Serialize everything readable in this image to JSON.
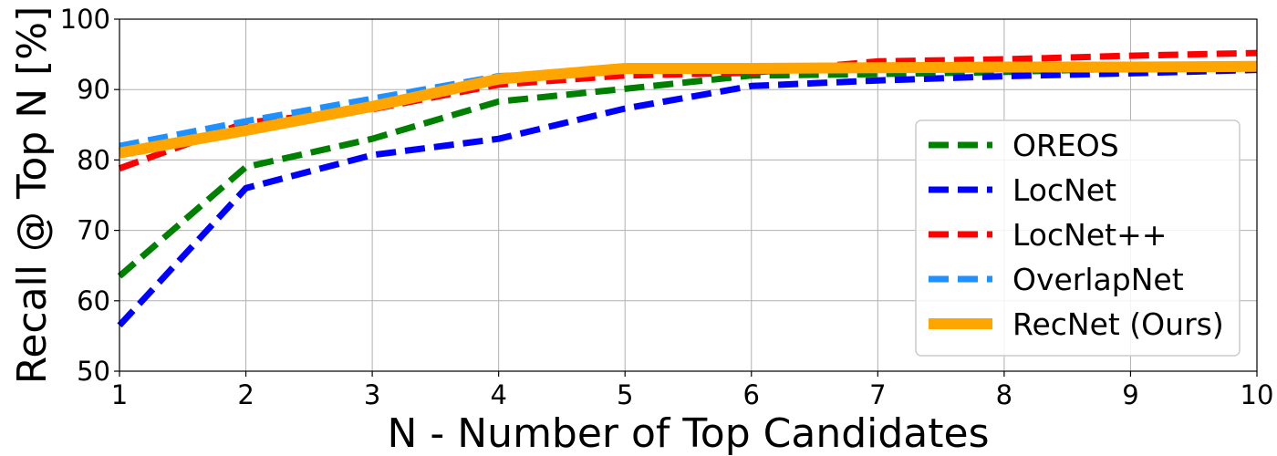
{
  "chart_data": {
    "type": "line",
    "title": "",
    "xlabel": "N - Number of Top Candidates",
    "ylabel": "Recall @ Top N [%]",
    "xlim": [
      1,
      10
    ],
    "ylim": [
      50,
      100
    ],
    "xticks": [
      "1",
      "2",
      "3",
      "4",
      "5",
      "6",
      "7",
      "8",
      "9",
      "10"
    ],
    "yticks": [
      "50",
      "60",
      "70",
      "80",
      "90",
      "100"
    ],
    "grid": true,
    "legend_position": "center-right",
    "series": [
      {
        "name": "OREOS",
        "color": "#008000",
        "style": "dashed",
        "x": [
          1,
          2,
          3,
          4,
          5,
          6,
          7,
          8,
          9,
          10
        ],
        "y": [
          63.5,
          79.0,
          83.0,
          88.3,
          90.1,
          92.0,
          92.2,
          92.5,
          93.0,
          93.3
        ]
      },
      {
        "name": "LocNet",
        "color": "#0000ff",
        "style": "dashed",
        "x": [
          1,
          2,
          3,
          4,
          5,
          6,
          7,
          8,
          9,
          10
        ],
        "y": [
          56.5,
          76.0,
          80.7,
          83.0,
          87.3,
          90.5,
          91.3,
          91.9,
          92.3,
          92.8
        ]
      },
      {
        "name": "LocNet++",
        "color": "#ff0000",
        "style": "dashed",
        "x": [
          1,
          2,
          3,
          4,
          5,
          6,
          7,
          8,
          9,
          10
        ],
        "y": [
          78.8,
          85.3,
          87.2,
          90.7,
          92.0,
          92.4,
          94.0,
          94.3,
          94.8,
          95.2
        ]
      },
      {
        "name": "OverlapNet",
        "color": "#1e90ff",
        "style": "dashed",
        "x": [
          1,
          2,
          3,
          4,
          5,
          6,
          7,
          8,
          9,
          10
        ],
        "y": [
          82.0,
          85.5,
          88.7,
          91.9,
          92.7,
          92.8,
          92.8,
          92.9,
          92.9,
          93.0
        ]
      },
      {
        "name": "RecNet (Ours)",
        "color": "#ffa500",
        "style": "solid",
        "x": [
          1,
          2,
          3,
          4,
          5,
          6,
          7,
          8,
          9,
          10
        ],
        "y": [
          81.0,
          84.2,
          87.6,
          91.5,
          93.0,
          93.0,
          93.1,
          93.2,
          93.2,
          93.3
        ]
      }
    ]
  }
}
